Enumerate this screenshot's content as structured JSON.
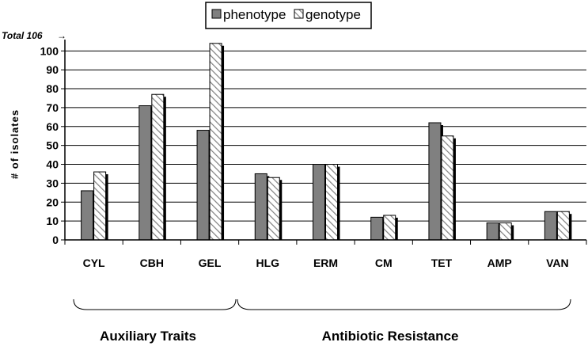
{
  "chart_data": {
    "type": "bar",
    "categories": [
      "CYL",
      "CBH",
      "GEL",
      "HLG",
      "ERM",
      "CM",
      "TET",
      "AMP",
      "VAN"
    ],
    "series": [
      {
        "name": "phenotype",
        "values": [
          26,
          71,
          58,
          35,
          40,
          12,
          62,
          9,
          15
        ]
      },
      {
        "name": "genotype",
        "values": [
          36,
          77,
          104,
          33,
          40,
          13,
          55,
          9,
          15
        ]
      }
    ],
    "title": "",
    "xlabel": "",
    "ylabel": "# of isolates",
    "ylim": [
      0,
      106
    ],
    "yticks": [
      0,
      10,
      20,
      30,
      40,
      50,
      60,
      70,
      80,
      90,
      100
    ],
    "grid": true,
    "legend": "top-center",
    "annotation": "Total 106",
    "annotation_arrow": "→",
    "groups": [
      {
        "label": "Auxiliary Traits",
        "categories": [
          "CYL",
          "CBH",
          "GEL"
        ]
      },
      {
        "label": "Antibiotic Resistance",
        "categories": [
          "HLG",
          "ERM",
          "CM",
          "TET",
          "AMP",
          "VAN"
        ]
      }
    ],
    "colors": {
      "phenotype": "#808080",
      "genotype_hatch": "#808080",
      "shadow": "#000000",
      "grid": "#000000"
    }
  }
}
